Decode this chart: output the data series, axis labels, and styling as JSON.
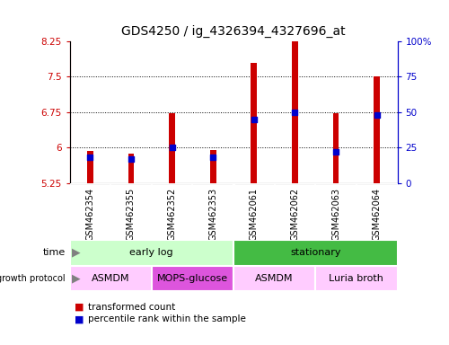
{
  "title": "GDS4250 / ig_4326394_4327696_at",
  "samples": [
    "GSM462354",
    "GSM462355",
    "GSM462352",
    "GSM462353",
    "GSM462061",
    "GSM462062",
    "GSM462063",
    "GSM462064"
  ],
  "transformed_counts": [
    5.93,
    5.87,
    6.72,
    5.94,
    7.8,
    8.38,
    6.72,
    7.5
  ],
  "percentile_ranks": [
    18,
    17,
    25,
    18,
    45,
    50,
    22,
    48
  ],
  "bar_bottom": 5.25,
  "ylim": [
    5.25,
    8.25
  ],
  "ylim_right": [
    0,
    100
  ],
  "yticks_left": [
    5.25,
    6.0,
    6.75,
    7.5,
    8.25
  ],
  "yticks_right": [
    0,
    25,
    50,
    75,
    100
  ],
  "ytick_labels_left": [
    "5.25",
    "6",
    "6.75",
    "7.5",
    "8.25"
  ],
  "ytick_labels_right": [
    "0",
    "25",
    "50",
    "75",
    "100%"
  ],
  "hlines": [
    6.0,
    6.75,
    7.5
  ],
  "bar_color": "#cc0000",
  "dot_color": "#0000cc",
  "bar_width": 0.15,
  "dot_size": 18,
  "time_groups": [
    {
      "label": "early log",
      "start": 0,
      "end": 3,
      "color": "#ccffcc"
    },
    {
      "label": "stationary",
      "start": 4,
      "end": 7,
      "color": "#44bb44"
    }
  ],
  "protocol_groups": [
    {
      "label": "ASMDM",
      "start": 0,
      "end": 1,
      "color": "#ffccff"
    },
    {
      "label": "MOPS-glucose",
      "start": 2,
      "end": 3,
      "color": "#dd55dd"
    },
    {
      "label": "ASMDM",
      "start": 4,
      "end": 5,
      "color": "#ffccff"
    },
    {
      "label": "Luria broth",
      "start": 6,
      "end": 7,
      "color": "#ffccff"
    }
  ],
  "tick_color_left": "#cc0000",
  "tick_color_right": "#0000cc",
  "title_fontsize": 10,
  "ytick_fontsize": 7.5,
  "xtick_fontsize": 7,
  "annotation_fontsize": 8,
  "legend_fontsize": 7.5,
  "label_fontsize": 8,
  "bg_color_plot": "#ffffff",
  "bg_color_fig": "#ffffff",
  "sample_bg_color": "#d0d0d0"
}
